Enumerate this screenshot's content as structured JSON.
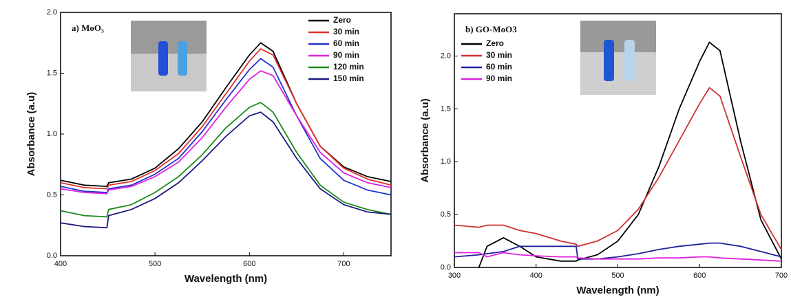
{
  "chart_data": [
    {
      "type": "line",
      "title": "a) MoO₃",
      "xlabel": "Wavelength (nm)",
      "ylabel": "Absorbance (a.u)",
      "legend": "upper right",
      "xlim": [
        400,
        750
      ],
      "xticks": [
        400,
        500,
        600,
        700
      ],
      "ylim": [
        0,
        2
      ],
      "yticks": [
        {
          "value": 0,
          "label": "0.0"
        },
        0.5,
        {
          "value": 1,
          "label": "1.0"
        },
        1.5,
        {
          "value": 2,
          "label": "2.0"
        }
      ],
      "x": [
        400,
        425,
        449,
        451,
        475,
        500,
        525,
        550,
        575,
        600,
        612,
        625,
        650,
        675,
        700,
        725,
        750
      ],
      "series": [
        {
          "name": "Zero",
          "color": "#000000",
          "values": [
            0.62,
            0.58,
            0.57,
            0.6,
            0.63,
            0.72,
            0.88,
            1.1,
            1.38,
            1.65,
            1.75,
            1.68,
            1.25,
            0.9,
            0.73,
            0.65,
            0.61
          ]
        },
        {
          "name": "30 min",
          "color": "#e0302a",
          "values": [
            0.6,
            0.56,
            0.55,
            0.58,
            0.61,
            0.7,
            0.84,
            1.06,
            1.33,
            1.6,
            1.7,
            1.65,
            1.25,
            0.9,
            0.72,
            0.63,
            0.58
          ]
        },
        {
          "name": "60 min",
          "color": "#2233cc",
          "values": [
            0.57,
            0.53,
            0.52,
            0.55,
            0.58,
            0.67,
            0.8,
            1.02,
            1.28,
            1.53,
            1.62,
            1.55,
            1.15,
            0.8,
            0.62,
            0.54,
            0.5
          ]
        },
        {
          "name": "90 min",
          "color": "#e020e0",
          "values": [
            0.55,
            0.52,
            0.51,
            0.54,
            0.57,
            0.65,
            0.77,
            0.97,
            1.22,
            1.45,
            1.52,
            1.48,
            1.15,
            0.85,
            0.68,
            0.6,
            0.56
          ]
        },
        {
          "name": "120 min",
          "color": "#1a8a1a",
          "values": [
            0.37,
            0.33,
            0.32,
            0.38,
            0.42,
            0.52,
            0.65,
            0.83,
            1.05,
            1.22,
            1.26,
            1.18,
            0.85,
            0.58,
            0.44,
            0.38,
            0.34
          ]
        },
        {
          "name": "150 min",
          "color": "#1a1a80",
          "values": [
            0.27,
            0.24,
            0.23,
            0.33,
            0.38,
            0.47,
            0.6,
            0.78,
            0.98,
            1.15,
            1.18,
            1.1,
            0.8,
            0.55,
            0.42,
            0.36,
            0.34
          ]
        }
      ]
    },
    {
      "type": "line",
      "title": "b) GO-MoO3",
      "xlabel": "Wavelength (nm)",
      "ylabel": "Absorbance (a.u)",
      "legend": "upper left",
      "xlim": [
        300,
        700
      ],
      "xticks": [
        300,
        400,
        500,
        600,
        700
      ],
      "ylim": [
        0,
        2.4
      ],
      "yticks": [
        {
          "value": 0,
          "label": "0.0"
        },
        0.5,
        {
          "value": 1,
          "label": "1.0"
        },
        1.5,
        {
          "value": 2,
          "label": "2.0"
        }
      ],
      "x": [
        300,
        330,
        340,
        360,
        380,
        400,
        430,
        449,
        451,
        475,
        500,
        525,
        550,
        575,
        600,
        612,
        625,
        650,
        675,
        700
      ],
      "series": [
        {
          "name": "Zero",
          "color": "#000000",
          "values": [
            null,
            0.0,
            0.2,
            0.28,
            0.2,
            0.1,
            0.06,
            0.06,
            0.07,
            0.12,
            0.25,
            0.5,
            0.95,
            1.5,
            1.95,
            2.13,
            2.05,
            1.2,
            0.45,
            0.08
          ]
        },
        {
          "name": "30 min",
          "color": "#d03030",
          "values": [
            0.4,
            0.38,
            0.4,
            0.4,
            0.35,
            0.32,
            0.25,
            0.22,
            0.2,
            0.25,
            0.35,
            0.55,
            0.85,
            1.2,
            1.55,
            1.7,
            1.62,
            1.05,
            0.5,
            0.17
          ]
        },
        {
          "name": "60 min",
          "color": "#2020a0",
          "values": [
            0.1,
            0.12,
            0.13,
            0.15,
            0.2,
            0.2,
            0.2,
            0.2,
            0.08,
            0.08,
            0.1,
            0.13,
            0.17,
            0.2,
            0.22,
            0.23,
            0.23,
            0.2,
            0.15,
            0.1
          ]
        },
        {
          "name": "90 min",
          "color": "#e020e0",
          "values": [
            0.14,
            0.14,
            0.1,
            0.14,
            0.12,
            0.11,
            0.1,
            0.1,
            0.09,
            0.08,
            0.08,
            0.08,
            0.09,
            0.09,
            0.1,
            0.1,
            0.09,
            0.08,
            0.07,
            0.06
          ]
        }
      ]
    }
  ]
}
